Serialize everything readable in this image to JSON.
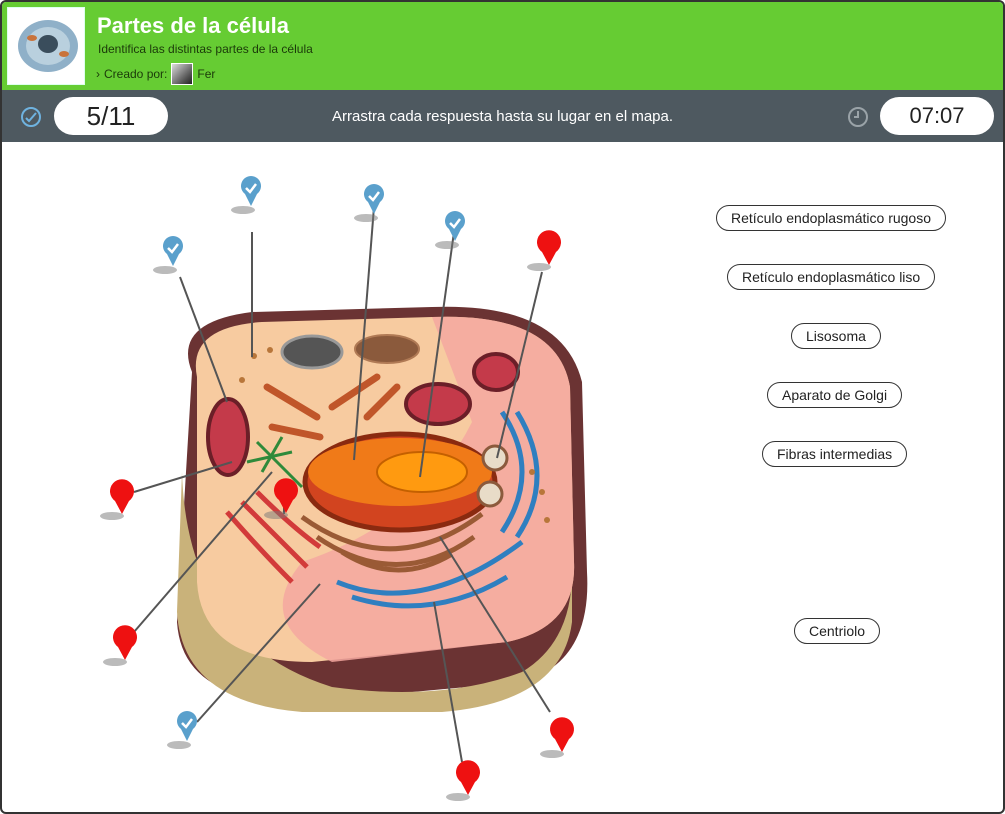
{
  "header": {
    "title": "Partes de la célula",
    "subtitle": "Identifica las distintas partes de la célula",
    "creator_label": "Creado por:",
    "creator_name": "Fer"
  },
  "toolbar": {
    "score": "5/11",
    "instruction": "Arrastra cada respuesta hasta su lugar en el mapa.",
    "timer": "07:07"
  },
  "answers": [
    "Retículo endoplasmático rugoso",
    "Retículo endoplasmático liso",
    "Lisosoma",
    "Aparato de Golgi",
    "Fibras intermedias",
    "Centriolo"
  ],
  "pins": {
    "correct": [
      "correct",
      "correct",
      "correct",
      "correct",
      "correct"
    ],
    "pending": [
      "pending",
      "pending",
      "pending",
      "pending",
      "pending",
      "pending"
    ]
  },
  "colors": {
    "header_green": "#66cc33",
    "toolbar_gray": "#4e5960",
    "pin_correct": "#5aa0cc",
    "pin_pending": "#ee1111"
  },
  "icons": {
    "score": "check-circle-icon",
    "timer": "clock-icon",
    "breadcrumb": "chevron-right-icon"
  }
}
